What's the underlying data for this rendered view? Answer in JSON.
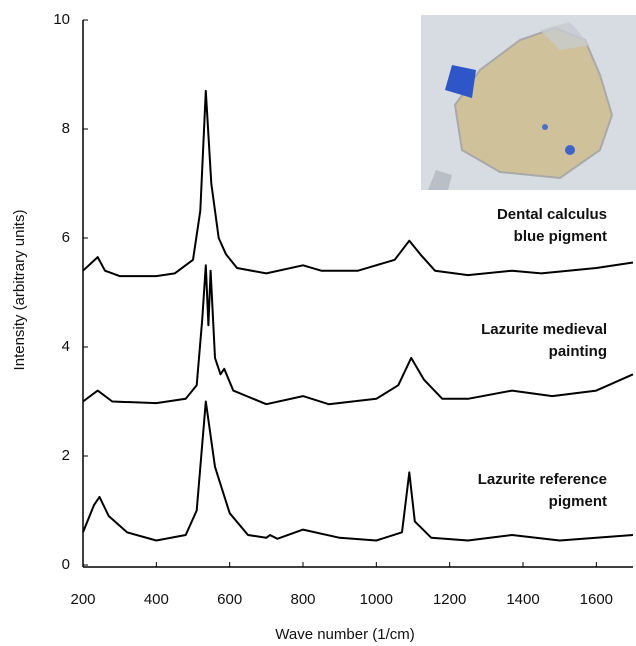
{
  "chart_data": {
    "type": "line",
    "x_label": "Wave number (1/cm)",
    "y_label": "Intensity (arbitrary units)",
    "xlim": [
      200,
      1700
    ],
    "xticks": [
      200,
      400,
      600,
      800,
      1000,
      1200,
      1400,
      1600
    ],
    "ylim": [
      0,
      10
    ],
    "yticks": [
      0,
      2,
      4,
      6,
      8,
      10
    ],
    "series": [
      {
        "label_lines": [
          "Dental calculus",
          "blue pigment"
        ],
        "color": "#000000",
        "x": [
          200,
          240,
          260,
          300,
          400,
          450,
          500,
          520,
          535,
          550,
          570,
          590,
          620,
          700,
          800,
          850,
          950,
          1050,
          1090,
          1120,
          1160,
          1250,
          1370,
          1450,
          1600,
          1700
        ],
        "values": [
          5.4,
          5.65,
          5.4,
          5.3,
          5.3,
          5.35,
          5.6,
          6.5,
          8.7,
          7.0,
          6.0,
          5.7,
          5.45,
          5.35,
          5.5,
          5.4,
          5.4,
          5.6,
          5.95,
          5.7,
          5.4,
          5.32,
          5.4,
          5.35,
          5.45,
          5.55
        ]
      },
      {
        "label_lines": [
          "Lazurite medieval",
          "painting"
        ],
        "color": "#000000",
        "x": [
          200,
          240,
          280,
          400,
          480,
          510,
          525,
          535,
          542,
          548,
          560,
          575,
          585,
          610,
          700,
          800,
          870,
          1000,
          1060,
          1095,
          1130,
          1180,
          1250,
          1370,
          1480,
          1600,
          1700
        ],
        "values": [
          3.0,
          3.2,
          3.0,
          2.97,
          3.05,
          3.3,
          4.5,
          5.5,
          4.4,
          5.4,
          3.8,
          3.5,
          3.6,
          3.2,
          2.95,
          3.1,
          2.95,
          3.05,
          3.3,
          3.8,
          3.4,
          3.05,
          3.05,
          3.2,
          3.1,
          3.2,
          3.5
        ]
      },
      {
        "label_lines": [
          "Lazurite reference",
          "pigment"
        ],
        "color": "#000000",
        "x": [
          200,
          230,
          245,
          270,
          320,
          400,
          480,
          510,
          535,
          560,
          600,
          650,
          700,
          710,
          730,
          800,
          900,
          1000,
          1070,
          1090,
          1105,
          1150,
          1250,
          1370,
          1500,
          1700
        ],
        "values": [
          0.6,
          1.1,
          1.25,
          0.9,
          0.6,
          0.45,
          0.55,
          1.0,
          3.0,
          1.8,
          0.95,
          0.55,
          0.5,
          0.55,
          0.48,
          0.65,
          0.5,
          0.45,
          0.6,
          1.7,
          0.8,
          0.5,
          0.45,
          0.55,
          0.45,
          0.55
        ]
      }
    ]
  }
}
